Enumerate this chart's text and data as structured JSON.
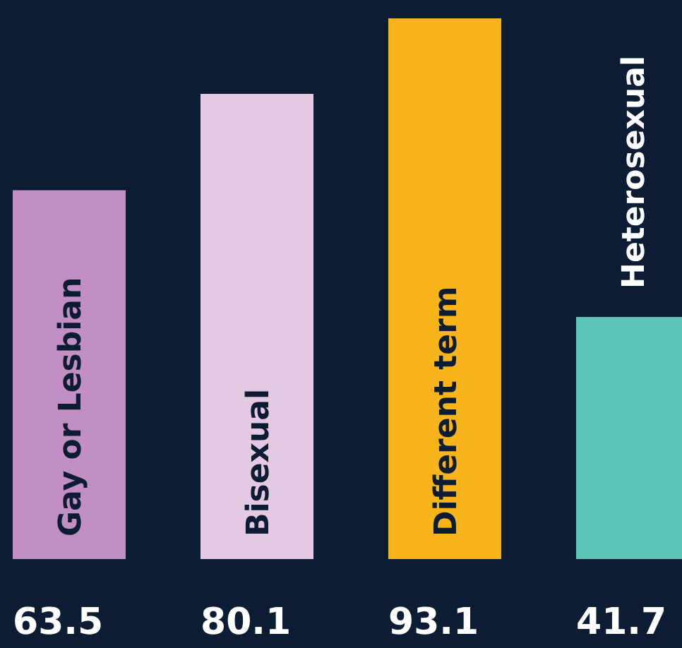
{
  "chart_data": {
    "type": "bar",
    "categories": [
      "Gay or Lesbian",
      "Bisexual",
      "Different term",
      "Heterosexual"
    ],
    "values": [
      63.5,
      80.1,
      93.1,
      41.7
    ],
    "colors": [
      "#c18fc3",
      "#e5c9e3",
      "#f9b31b",
      "#5ec5b9"
    ],
    "data_labels": true
  }
}
